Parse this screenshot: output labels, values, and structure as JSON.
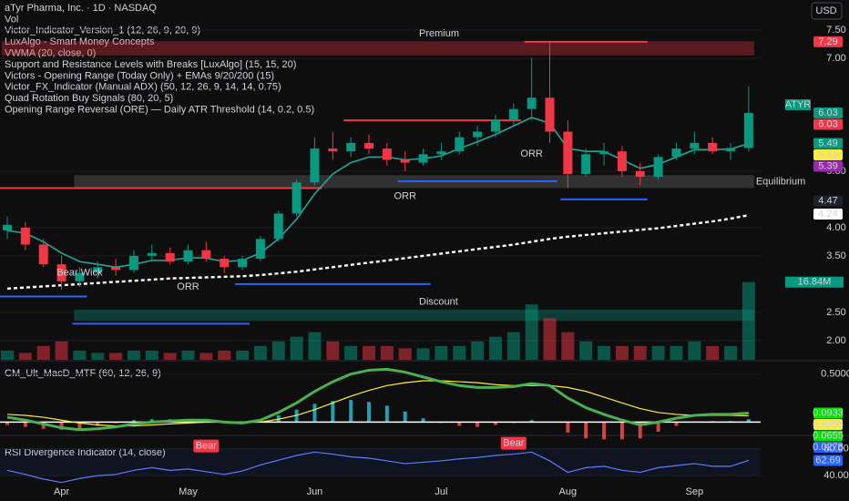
{
  "header": {
    "title": "aTyr Pharma, Inc. · 1D · NASDAQ",
    "indicators": [
      "Vol",
      "Victor_Indicator_Version_1 (12, 26, 9, 20, 9)",
      "LuxAlgo - Smart Money Concepts",
      "VWMA (20, close, 0)",
      "Support and Resistance Levels with Breaks [LuxAlgo] (15, 15, 20)",
      "Victors - Opening Range (Today Only) + EMAs 9/20/200 (15)",
      "Victor_FX_Indicator (Manual ADX) (50, 12, 26, 9, 14, 14, 0.75)",
      "Quad Rotation Buy Signals (80, 20, 5)",
      "Opening Range Reversal (ORE) — Daily ATR Threshold (14, 0.2, 0.5)"
    ]
  },
  "currency": "USD",
  "chart_data": [
    {
      "type": "candlestick",
      "symbol": "ATYR",
      "categories": [
        null,
        null,
        null,
        "Apr",
        null,
        null,
        null,
        null,
        null,
        null,
        "May",
        null,
        null,
        null,
        null,
        null,
        null,
        "Jun",
        null,
        null,
        null,
        null,
        null,
        null,
        "Jul",
        null,
        null,
        null,
        null,
        null,
        null,
        "Aug",
        null,
        null,
        null,
        null,
        null,
        null,
        "Sep",
        null,
        null,
        null
      ],
      "open": [
        3.95,
        4.0,
        3.7,
        3.35,
        3.05,
        3.2,
        3.3,
        3.25,
        3.5,
        3.55,
        3.4,
        3.6,
        3.45,
        3.3,
        3.45,
        3.8,
        4.25,
        4.8,
        5.4,
        5.35,
        5.5,
        5.4,
        5.2,
        5.15,
        5.3,
        5.35,
        5.6,
        5.7,
        5.9,
        6.1,
        6.3,
        5.7,
        4.95,
        5.3,
        5.35,
        5.0,
        4.9,
        5.25,
        5.4,
        5.5,
        5.35,
        5.41
      ],
      "high": [
        4.2,
        4.1,
        3.8,
        3.5,
        3.3,
        3.4,
        3.45,
        3.6,
        3.7,
        3.65,
        3.7,
        3.75,
        3.5,
        3.5,
        3.85,
        4.3,
        4.85,
        5.6,
        5.7,
        5.6,
        5.65,
        5.5,
        5.35,
        5.4,
        5.5,
        5.7,
        5.8,
        6.0,
        6.2,
        7.0,
        7.3,
        5.9,
        5.4,
        5.5,
        5.45,
        5.15,
        5.3,
        5.5,
        5.7,
        5.6,
        5.5,
        6.5
      ],
      "low": [
        3.8,
        3.6,
        3.3,
        2.9,
        2.95,
        3.1,
        3.15,
        3.2,
        3.4,
        3.35,
        3.35,
        3.4,
        3.2,
        3.25,
        3.4,
        3.75,
        4.2,
        4.75,
        5.2,
        5.25,
        5.3,
        5.1,
        5.0,
        5.1,
        5.2,
        5.3,
        5.45,
        5.6,
        5.8,
        5.9,
        5.5,
        4.7,
        4.9,
        5.1,
        4.9,
        4.75,
        4.85,
        5.2,
        5.3,
        5.3,
        5.2,
        5.35
      ],
      "close": [
        4.05,
        3.7,
        3.35,
        3.05,
        3.2,
        3.3,
        3.25,
        3.5,
        3.55,
        3.4,
        3.6,
        3.45,
        3.3,
        3.45,
        3.8,
        4.25,
        4.8,
        5.4,
        5.35,
        5.5,
        5.4,
        5.2,
        5.15,
        5.3,
        5.35,
        5.6,
        5.7,
        5.9,
        6.1,
        6.3,
        5.7,
        4.95,
        5.3,
        5.35,
        5.0,
        4.9,
        5.25,
        5.4,
        5.5,
        5.35,
        5.41,
        6.03
      ],
      "volume": [
        2,
        1.5,
        3,
        4,
        2,
        1.5,
        1.5,
        2,
        2,
        1.5,
        2,
        1.5,
        2,
        2,
        3,
        4,
        5,
        6,
        4,
        3,
        3,
        3,
        2.5,
        2.5,
        3,
        3,
        4,
        5,
        6,
        12,
        9,
        6,
        4,
        3,
        3,
        3,
        3,
        3,
        4,
        3,
        3,
        16.84
      ],
      "volume_ylim": [
        0,
        78
      ],
      "volume_label": {
        "value": 16.84,
        "label": "16.84M"
      },
      "up_color": "#089981",
      "down_color": "#f23645",
      "ylim": [
        1.66,
        8.03
      ],
      "yticks": [
        {
          "value": 2,
          "label": "2.00"
        },
        {
          "value": 2.5,
          "label": "2.50"
        },
        {
          "value": 3.5,
          "label": "3.50"
        },
        {
          "value": 4,
          "label": "4.00"
        },
        {
          "value": 5,
          "label": "5.00"
        },
        {
          "value": 7,
          "label": "7.00"
        },
        {
          "value": 7.5,
          "label": "7.50"
        }
      ],
      "series": [
        {
          "color": "#ffffff",
          "dashed": true,
          "values": [
            2.92,
            2.94,
            2.96,
            2.98,
            3.0,
            3.02,
            3.04,
            3.06,
            3.08,
            3.1,
            3.11,
            3.12,
            3.13,
            3.14,
            3.16,
            3.19,
            3.22,
            3.26,
            3.3,
            3.34,
            3.38,
            3.42,
            3.46,
            3.5,
            3.54,
            3.58,
            3.62,
            3.66,
            3.7,
            3.75,
            3.8,
            3.84,
            3.87,
            3.9,
            3.93,
            3.96,
            3.99,
            4.03,
            4.07,
            4.11,
            4.16,
            4.22
          ]
        },
        {
          "color": "#26a69a",
          "dashed": false,
          "values": [
            3.95,
            3.9,
            3.75,
            3.55,
            3.4,
            3.35,
            3.3,
            3.35,
            3.42,
            3.42,
            3.47,
            3.46,
            3.4,
            3.42,
            3.55,
            3.8,
            4.15,
            4.6,
            4.95,
            5.15,
            5.25,
            5.25,
            5.2,
            5.22,
            5.27,
            5.4,
            5.52,
            5.65,
            5.8,
            5.95,
            5.85,
            5.4,
            5.35,
            5.35,
            5.2,
            5.05,
            5.12,
            5.25,
            5.38,
            5.38,
            5.39,
            5.49
          ]
        }
      ],
      "zones": [
        {
          "text": "Premium",
          "low": 7.05,
          "high": 7.3,
          "start": 0,
          "end": 41,
          "color": "#f2364555"
        },
        {
          "text": "Equilibrium",
          "low": 4.7,
          "high": 4.93,
          "start": 4,
          "end": 41,
          "color": "#78787855"
        },
        {
          "text": "Discount",
          "low": 2.35,
          "high": 2.55,
          "start": 4,
          "end": 41,
          "color": "#08998155"
        }
      ],
      "levels": [
        {
          "value": 7.29,
          "start": 29,
          "end": 35,
          "color": "#f23645"
        },
        {
          "value": 5.9,
          "start": 19,
          "end": 28,
          "color": "#f23645"
        },
        {
          "value": 4.7,
          "start": 0,
          "end": 17,
          "color": "#f23645"
        },
        {
          "value": 4.82,
          "start": 22,
          "end": 30,
          "color": "#2962ff"
        },
        {
          "value": 4.5,
          "start": 31,
          "end": 35,
          "color": "#2962ff"
        },
        {
          "value": 2.3,
          "start": 4,
          "end": 13,
          "color": "#2962ff"
        },
        {
          "value": 3.0,
          "start": 13,
          "end": 23,
          "color": "#2962ff"
        },
        {
          "value": 2.78,
          "start": 0,
          "end": 4,
          "color": "#2962ff"
        }
      ],
      "annotations": [
        {
          "text": "ORR",
          "index": 22,
          "value": 4.55
        },
        {
          "text": "ORR",
          "index": 10,
          "value": 2.95
        },
        {
          "text": "ORR",
          "index": 29,
          "value": 5.3
        },
        {
          "text": "Bear Wick",
          "index": 4,
          "value": 3.2
        }
      ],
      "price_labels": [
        {
          "value": 7.29,
          "color": "#f23645",
          "text_color": "#ffffff"
        },
        {
          "value": 6.03,
          "color": "#089981",
          "text_color": "#ffffff"
        },
        {
          "value": 6.03,
          "color": "#f23645",
          "text_color": "#ffffff"
        },
        {
          "value": 5.49,
          "color": "#089981",
          "text_color": "#ffffff"
        },
        {
          "value": 5.41,
          "color": "#ffeb3b",
          "text_color": "#000000"
        },
        {
          "value": 5.39,
          "color": "#9c27b0",
          "text_color": "#ffffff"
        },
        {
          "value": 4.47,
          "color": "#1e222d",
          "text_color": "#ffffff"
        },
        {
          "value": 4.24,
          "color": "#ffffff",
          "text_color": "#000000"
        }
      ]
    },
    {
      "type": "macd",
      "title": "CM_Ult_MacD_MTF (60, 12, 26, 9)",
      "macd": [
        0.05,
        0.02,
        -0.02,
        -0.06,
        -0.08,
        -0.07,
        -0.05,
        -0.02,
        0.0,
        0.01,
        0.02,
        0.02,
        0.0,
        -0.01,
        0.02,
        0.1,
        0.2,
        0.32,
        0.42,
        0.5,
        0.54,
        0.55,
        0.52,
        0.47,
        0.42,
        0.38,
        0.36,
        0.36,
        0.37,
        0.4,
        0.38,
        0.25,
        0.15,
        0.08,
        0.02,
        -0.03,
        0.0,
        0.04,
        0.07,
        0.08,
        0.08,
        0.0933
      ],
      "signal": [
        0.08,
        0.07,
        0.05,
        0.02,
        -0.01,
        -0.03,
        -0.04,
        -0.04,
        -0.03,
        -0.02,
        -0.01,
        0.0,
        0.0,
        0.0,
        0.0,
        0.03,
        0.07,
        0.13,
        0.2,
        0.27,
        0.33,
        0.38,
        0.41,
        0.43,
        0.43,
        0.42,
        0.41,
        0.39,
        0.38,
        0.38,
        0.38,
        0.36,
        0.32,
        0.26,
        0.2,
        0.14,
        0.1,
        0.08,
        0.07,
        0.07,
        0.07,
        0.0655
      ],
      "histogram": [
        -0.03,
        -0.05,
        -0.07,
        -0.08,
        -0.07,
        -0.04,
        -0.01,
        0.02,
        0.03,
        0.03,
        0.03,
        0.02,
        0.0,
        -0.01,
        0.02,
        0.07,
        0.13,
        0.19,
        0.22,
        0.23,
        0.21,
        0.17,
        0.11,
        0.04,
        -0.01,
        -0.04,
        -0.05,
        -0.03,
        -0.01,
        0.02,
        0.0,
        -0.11,
        -0.17,
        -0.18,
        -0.18,
        -0.17,
        -0.1,
        -0.04,
        0.0,
        0.01,
        0.01,
        0.03
      ],
      "ylim": [
        -0.12,
        0.62
      ],
      "yticks": [
        {
          "value": 0.5,
          "label": "0.5000"
        }
      ],
      "value_tags": [
        {
          "value": 0.0933,
          "color": "#00e600",
          "text_color": "#000000"
        },
        {
          "value": 0.0655,
          "color": "#ffeb3b",
          "text_color": "#000000"
        },
        {
          "value": 0.0655,
          "color": "#00e600",
          "text_color": "#000000"
        },
        {
          "value": 0.0278,
          "color": "#2962ff",
          "text_color": "#ffffff"
        }
      ]
    },
    {
      "type": "rsi",
      "title": "RSI Divergence Indicator (14, close)",
      "values": [
        48,
        42,
        35,
        30,
        36,
        40,
        42,
        48,
        52,
        48,
        50,
        46,
        42,
        47,
        56,
        63,
        70,
        75,
        72,
        68,
        66,
        62,
        58,
        60,
        62,
        65,
        67,
        70,
        72,
        75,
        62,
        45,
        52,
        54,
        48,
        45,
        52,
        55,
        58,
        54,
        54,
        62.69
      ],
      "ylim": [
        8,
        97
      ],
      "yticks": [
        {
          "value": 80,
          "label": "80.00"
        },
        {
          "value": 40,
          "label": "40.00"
        }
      ],
      "value_tags": [
        {
          "value": 62.69,
          "color": "#2962ff",
          "text_color": "#ffffff"
        }
      ],
      "annotations": [
        {
          "text": "Bear",
          "index": 11,
          "value": 84
        },
        {
          "text": "Bear",
          "index": 28,
          "value": 88
        }
      ]
    }
  ]
}
